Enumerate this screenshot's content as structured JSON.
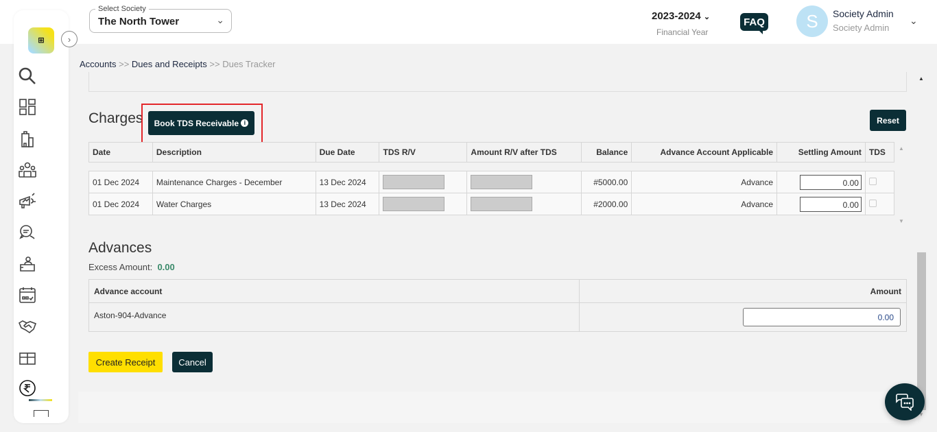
{
  "header": {
    "society_label": "Select Society",
    "society_value": "The North Tower",
    "financial_year": "2023-2024",
    "financial_year_label": "Financial Year",
    "faq": "FAQ",
    "avatar_initial": "S",
    "user_name": "Society Admin",
    "user_role": "Society Admin"
  },
  "sidebar": {
    "logo_text": "mor",
    "items": [
      "search",
      "dashboard",
      "buildings",
      "members",
      "announcements",
      "chat",
      "helpdesk",
      "calendar",
      "partners",
      "amenities",
      "accounts",
      "more"
    ],
    "active": "accounts"
  },
  "breadcrumb": [
    {
      "label": "Accounts"
    },
    {
      "label": "Dues and Receipts"
    },
    {
      "label": "Dues Tracker"
    }
  ],
  "breadcrumb_sep": ">>",
  "charges": {
    "title": "Charges",
    "book_tds_label": "Book TDS Receivable",
    "reset_label": "Reset",
    "columns": [
      "Date",
      "Description",
      "Due Date",
      "TDS R/V",
      "Amount R/V after TDS",
      "Balance",
      "Advance Account Applicable",
      "Settling Amount",
      "TDS"
    ],
    "rows": [
      {
        "date": "01 Dec 2024",
        "description": "Maintenance Charges - December",
        "due_date": "13 Dec 2024",
        "balance": "#5000.00",
        "advance": "Advance",
        "settling": "0.00",
        "tds": false
      },
      {
        "date": "01 Dec 2024",
        "description": "Water Charges",
        "due_date": "13 Dec 2024",
        "balance": "#2000.00",
        "advance": "Advance",
        "settling": "0.00",
        "tds": false
      }
    ]
  },
  "advances": {
    "title": "Advances",
    "excess_label": "Excess Amount:",
    "excess_value": "0.00",
    "columns": [
      "Advance account",
      "Amount"
    ],
    "rows": [
      {
        "account": "Aston-904-Advance",
        "amount": "0.00"
      }
    ]
  },
  "actions": {
    "create_receipt": "Create Receipt",
    "cancel": "Cancel"
  },
  "colors": {
    "accent_dark": "#0b2e36",
    "primary_yellow": "#ffdf00",
    "highlight": "#e3262a",
    "excess_green": "#3a8a6a"
  }
}
